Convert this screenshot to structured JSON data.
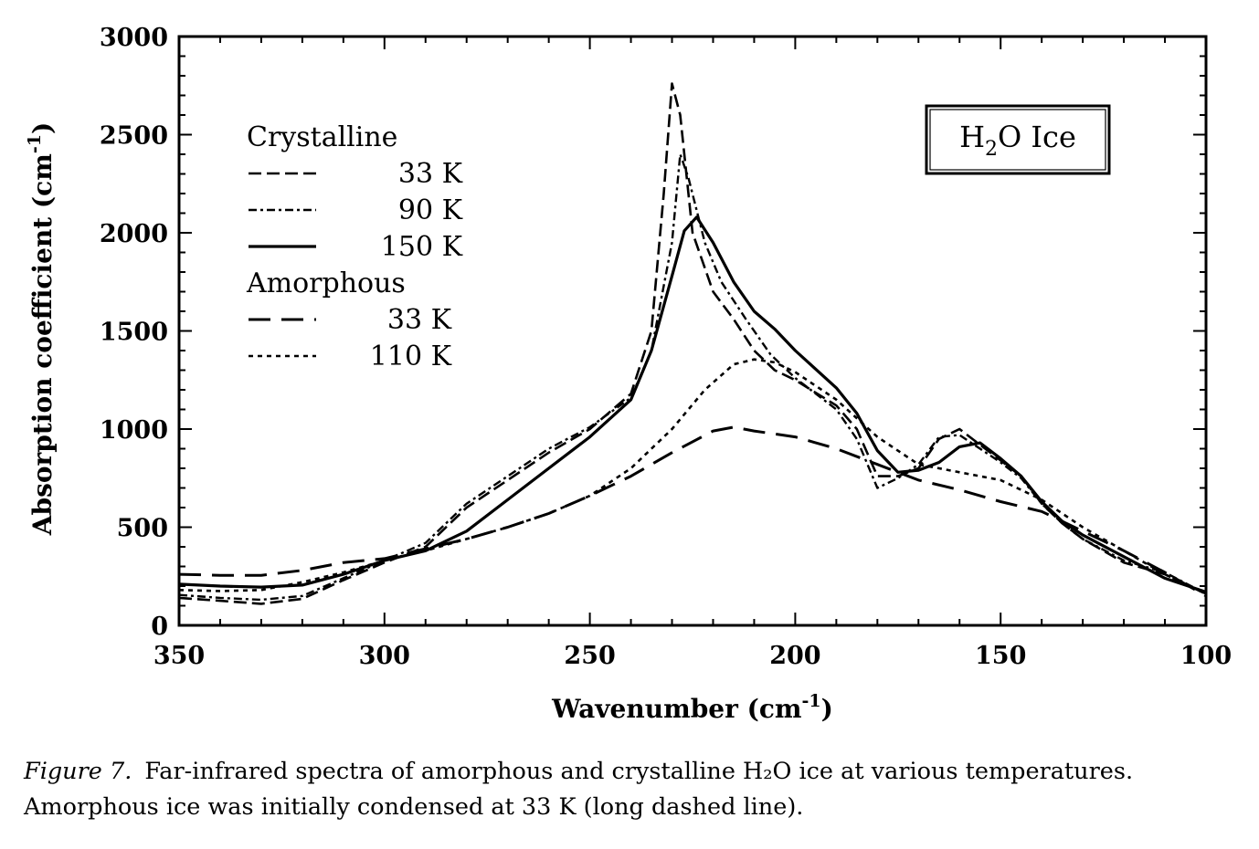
{
  "chart_data": {
    "type": "line",
    "xlabel": "Wavenumber (cm",
    "xlabel_sup": "-1",
    "xlabel_tail": ")",
    "ylabel": "Absorption coefficient (cm",
    "ylabel_sup": "-1",
    "ylabel_tail": ")",
    "xlim": [
      350,
      100
    ],
    "ylim": [
      0,
      3000
    ],
    "x_ticks": [
      350,
      300,
      250,
      200,
      150,
      100
    ],
    "x_tick_labels": [
      "350",
      "300",
      "250",
      "200",
      "150",
      "100"
    ],
    "y_ticks": [
      0,
      500,
      1000,
      1500,
      2000,
      2500,
      3000
    ],
    "y_tick_labels": [
      "0",
      "500",
      "1000",
      "1500",
      "2000",
      "2500",
      "3000"
    ],
    "grid": false,
    "legend_position": "top-left",
    "inset": {
      "main": "H",
      "sub": "2",
      "tail": "O Ice"
    },
    "legend_groups": [
      {
        "title": "Crystalline",
        "entries": [
          {
            "series": 0,
            "label": "33 K"
          },
          {
            "series": 1,
            "label": "90 K"
          },
          {
            "series": 2,
            "label": "150 K"
          }
        ]
      },
      {
        "title": "Amorphous",
        "entries": [
          {
            "series": 3,
            "label": "33 K"
          },
          {
            "series": 4,
            "label": "110 K"
          }
        ]
      }
    ],
    "series": [
      {
        "group": "Crystalline",
        "label": "33 K",
        "dash": "medium-dash",
        "points": [
          [
            350,
            140
          ],
          [
            340,
            125
          ],
          [
            330,
            110
          ],
          [
            320,
            135
          ],
          [
            310,
            230
          ],
          [
            300,
            320
          ],
          [
            290,
            400
          ],
          [
            280,
            600
          ],
          [
            270,
            740
          ],
          [
            260,
            880
          ],
          [
            250,
            1000
          ],
          [
            240,
            1180
          ],
          [
            235,
            1500
          ],
          [
            232,
            2200
          ],
          [
            230,
            2760
          ],
          [
            228,
            2600
          ],
          [
            225,
            2000
          ],
          [
            220,
            1700
          ],
          [
            215,
            1560
          ],
          [
            210,
            1400
          ],
          [
            205,
            1300
          ],
          [
            200,
            1250
          ],
          [
            190,
            1120
          ],
          [
            185,
            1000
          ],
          [
            180,
            760
          ],
          [
            175,
            760
          ],
          [
            170,
            800
          ],
          [
            165,
            950
          ],
          [
            160,
            1000
          ],
          [
            155,
            920
          ],
          [
            150,
            840
          ],
          [
            145,
            760
          ],
          [
            140,
            620
          ],
          [
            135,
            520
          ],
          [
            130,
            440
          ],
          [
            120,
            320
          ],
          [
            110,
            260
          ],
          [
            100,
            160
          ]
        ]
      },
      {
        "group": "Crystalline",
        "label": "90 K",
        "dash": "dash-dot",
        "points": [
          [
            350,
            155
          ],
          [
            340,
            140
          ],
          [
            330,
            130
          ],
          [
            320,
            150
          ],
          [
            310,
            240
          ],
          [
            300,
            330
          ],
          [
            290,
            420
          ],
          [
            280,
            620
          ],
          [
            270,
            760
          ],
          [
            260,
            900
          ],
          [
            250,
            1010
          ],
          [
            240,
            1160
          ],
          [
            235,
            1400
          ],
          [
            230,
            1950
          ],
          [
            228,
            2400
          ],
          [
            226,
            2280
          ],
          [
            222,
            1950
          ],
          [
            218,
            1750
          ],
          [
            212,
            1560
          ],
          [
            206,
            1380
          ],
          [
            200,
            1260
          ],
          [
            190,
            1100
          ],
          [
            185,
            950
          ],
          [
            180,
            700
          ],
          [
            175,
            750
          ],
          [
            170,
            820
          ],
          [
            165,
            960
          ],
          [
            160,
            970
          ],
          [
            155,
            900
          ],
          [
            150,
            830
          ],
          [
            145,
            750
          ],
          [
            140,
            620
          ],
          [
            135,
            520
          ],
          [
            130,
            440
          ],
          [
            120,
            330
          ],
          [
            110,
            270
          ],
          [
            100,
            160
          ]
        ]
      },
      {
        "group": "Crystalline",
        "label": "150 K",
        "dash": "solid",
        "points": [
          [
            350,
            210
          ],
          [
            340,
            200
          ],
          [
            330,
            195
          ],
          [
            320,
            205
          ],
          [
            310,
            260
          ],
          [
            300,
            330
          ],
          [
            290,
            380
          ],
          [
            280,
            480
          ],
          [
            270,
            640
          ],
          [
            260,
            800
          ],
          [
            250,
            960
          ],
          [
            240,
            1150
          ],
          [
            235,
            1400
          ],
          [
            230,
            1780
          ],
          [
            227,
            2010
          ],
          [
            224,
            2080
          ],
          [
            220,
            1950
          ],
          [
            215,
            1750
          ],
          [
            210,
            1600
          ],
          [
            205,
            1510
          ],
          [
            200,
            1400
          ],
          [
            190,
            1210
          ],
          [
            185,
            1080
          ],
          [
            180,
            890
          ],
          [
            175,
            780
          ],
          [
            170,
            790
          ],
          [
            165,
            830
          ],
          [
            160,
            910
          ],
          [
            155,
            930
          ],
          [
            150,
            850
          ],
          [
            145,
            760
          ],
          [
            140,
            630
          ],
          [
            135,
            530
          ],
          [
            130,
            460
          ],
          [
            120,
            350
          ],
          [
            110,
            240
          ],
          [
            100,
            170
          ]
        ]
      },
      {
        "group": "Amorphous",
        "label": "33 K",
        "dash": "long-dash",
        "points": [
          [
            350,
            260
          ],
          [
            340,
            255
          ],
          [
            330,
            255
          ],
          [
            320,
            280
          ],
          [
            310,
            320
          ],
          [
            300,
            340
          ],
          [
            290,
            390
          ],
          [
            280,
            440
          ],
          [
            270,
            500
          ],
          [
            260,
            570
          ],
          [
            250,
            660
          ],
          [
            240,
            760
          ],
          [
            230,
            880
          ],
          [
            220,
            990
          ],
          [
            215,
            1010
          ],
          [
            210,
            990
          ],
          [
            200,
            960
          ],
          [
            190,
            900
          ],
          [
            180,
            820
          ],
          [
            170,
            740
          ],
          [
            160,
            690
          ],
          [
            150,
            630
          ],
          [
            140,
            580
          ],
          [
            130,
            480
          ],
          [
            120,
            380
          ],
          [
            110,
            270
          ],
          [
            100,
            150
          ]
        ]
      },
      {
        "group": "Amorphous",
        "label": "110 K",
        "dash": "short-dot",
        "points": [
          [
            350,
            180
          ],
          [
            340,
            175
          ],
          [
            330,
            180
          ],
          [
            320,
            220
          ],
          [
            310,
            270
          ],
          [
            300,
            330
          ],
          [
            290,
            380
          ],
          [
            280,
            440
          ],
          [
            270,
            500
          ],
          [
            260,
            570
          ],
          [
            250,
            660
          ],
          [
            240,
            800
          ],
          [
            230,
            1000
          ],
          [
            222,
            1200
          ],
          [
            215,
            1330
          ],
          [
            210,
            1355
          ],
          [
            205,
            1340
          ],
          [
            200,
            1290
          ],
          [
            190,
            1150
          ],
          [
            180,
            960
          ],
          [
            170,
            820
          ],
          [
            160,
            780
          ],
          [
            150,
            740
          ],
          [
            140,
            640
          ],
          [
            130,
            500
          ],
          [
            120,
            380
          ],
          [
            110,
            260
          ],
          [
            100,
            160
          ]
        ]
      }
    ]
  },
  "caption": {
    "label": "Figure 7.",
    "text": "Far-infrared spectra of amorphous and crystalline H₂O ice at various temperatures. Amorphous ice was initially condensed at 33 K (long dashed line)."
  }
}
